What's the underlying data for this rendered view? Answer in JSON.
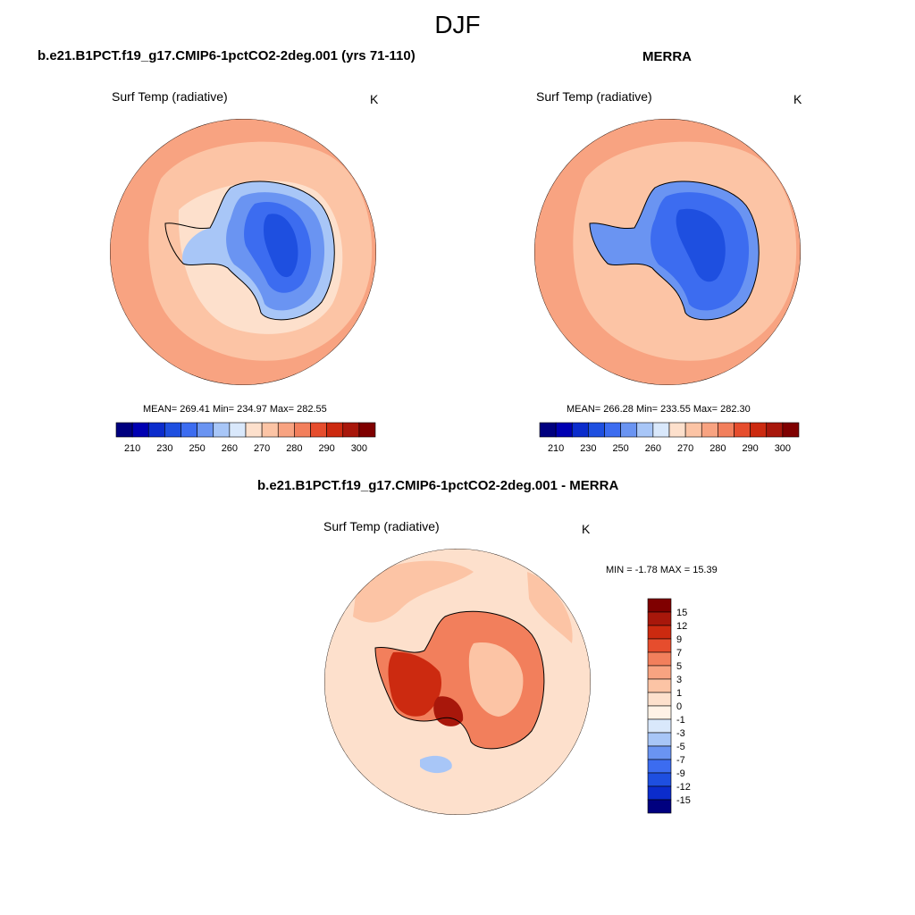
{
  "figure": {
    "title": "DJF",
    "diff_title": "b.e21.B1PCT.f19_g17.CMIP6-1pctCO2-2deg.001 - MERRA",
    "colors": {
      "coast": "#000000",
      "abs_levels": [
        "#00007f",
        "#0000b2",
        "#0b2ccc",
        "#1e4fe0",
        "#3c6cf0",
        "#6a94f2",
        "#a8c6f7",
        "#d9e8fb",
        "#fde0cc",
        "#fcc4a5",
        "#f8a381",
        "#f27f5c",
        "#e64d2d",
        "#cc2a10",
        "#a8170b",
        "#7f0000"
      ],
      "diff_levels": [
        "#00007f",
        "#0b2ccc",
        "#1e4fe0",
        "#3c6cf0",
        "#6a94f2",
        "#a8c6f7",
        "#d9e8fb",
        "#fff2e6",
        "#fde0cc",
        "#fcc4a5",
        "#f8a381",
        "#f27f5c",
        "#e64d2d",
        "#cc2a10",
        "#a8170b",
        "#7f0000"
      ]
    }
  },
  "panels": [
    {
      "title": "b.e21.B1PCT.f19_g17.CMIP6-1pctCO2-2deg.001 (yrs 71-110)",
      "variable": "Surf Temp (radiative)",
      "units": "K",
      "stats": "MEAN= 269.41  Min= 234.97  Max= 282.55",
      "colorbar_labels": [
        "210",
        "230",
        "250",
        "260",
        "270",
        "280",
        "290",
        "300"
      ],
      "colorbar_levels": [
        210,
        220,
        230,
        240,
        250,
        255,
        260,
        265,
        270,
        275,
        280,
        285,
        290,
        295,
        300
      ]
    },
    {
      "title": "MERRA",
      "variable": "Surf Temp (radiative)",
      "units": "K",
      "stats": "MEAN= 266.28  Min= 233.55  Max= 282.30",
      "colorbar_labels": [
        "210",
        "230",
        "250",
        "260",
        "270",
        "280",
        "290",
        "300"
      ],
      "colorbar_levels": [
        210,
        220,
        230,
        240,
        250,
        255,
        260,
        265,
        270,
        275,
        280,
        285,
        290,
        295,
        300
      ]
    },
    {
      "title": "",
      "variable": "Surf Temp (radiative)",
      "units": "K",
      "stats": "MIN =  -1.78 MAX =  15.39",
      "colorbar_labels": [
        "15",
        "12",
        "9",
        "7",
        "5",
        "3",
        "1",
        "0",
        "-1",
        "-3",
        "-5",
        "-7",
        "-9",
        "-12",
        "-15"
      ],
      "colorbar_levels": [
        15,
        12,
        9,
        7,
        5,
        3,
        1,
        0,
        -1,
        -3,
        -5,
        -7,
        -9,
        -12,
        -15
      ]
    }
  ]
}
